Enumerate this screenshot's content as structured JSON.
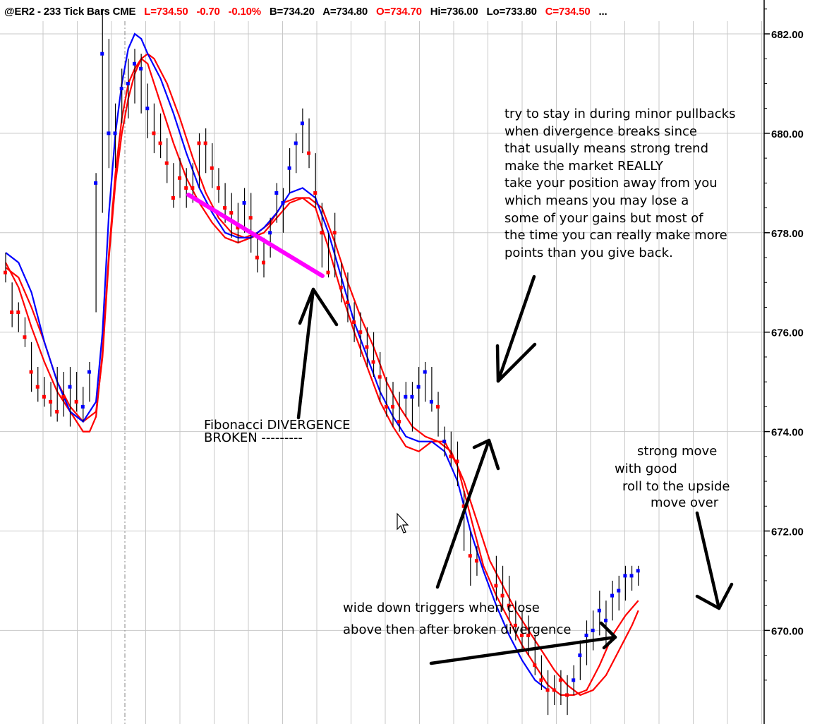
{
  "header": {
    "symbol_info": "@ER2 - 233 Tick Bars  CME",
    "last": "L=734.50",
    "change": "-0.70",
    "change_pct": "-0.10%",
    "bid": "B=734.20",
    "ask": "A=734.80",
    "open": "O=734.70",
    "high": "Hi=736.00",
    "low": "Lo=733.80",
    "close": "C=734.50",
    "more": "..."
  },
  "colors": {
    "up_bar": "#0000ff",
    "down_bar": "#ff0000",
    "fast_ma": "#0000ff",
    "slow_ma": "#ff0000",
    "divergence_line": "#ff00ff",
    "grid": "#c8c8c8"
  },
  "annotations": {
    "divergence": [
      "Fibonacci DIVERGENCE",
      "BROKEN ---------"
    ],
    "stay_in": [
      "try to stay in during minor pullbacks",
      "when divergence breaks since",
      "that usually means strong trend",
      "make the market REALLY",
      "take your position away from you",
      "which means you may lose a",
      "some of your gains but most of",
      "the time you can really make more",
      "points than you give back."
    ],
    "strong_move": [
      "strong move",
      "with good",
      "roll to the upside",
      "move over"
    ],
    "triggers": [
      "wide down triggers when close",
      "above then after broken divergence"
    ]
  },
  "chart_data": {
    "type": "bar",
    "title": "@ER2 - 233 Tick Bars  CME",
    "y_axis": {
      "ticks": [
        "682.00",
        "680.00",
        "678.00",
        "676.00",
        "674.00",
        "672.00",
        "670.00"
      ],
      "tick_values": [
        682,
        680,
        678,
        676,
        674,
        672,
        670
      ],
      "ylim": [
        668.2,
        682.6
      ]
    },
    "grid": true,
    "x_range": [
      0,
      74
    ],
    "bars": [
      {
        "i": 0,
        "open": 677.4,
        "high": 677.6,
        "low": 677.0,
        "close": 677.2,
        "color": "red"
      },
      {
        "i": 1,
        "open": 676.5,
        "high": 677.0,
        "low": 676.1,
        "close": 676.4,
        "color": "red"
      },
      {
        "i": 2,
        "open": 676.4,
        "high": 676.6,
        "low": 676.0,
        "close": 676.4,
        "color": "red"
      },
      {
        "i": 3,
        "open": 676.0,
        "high": 676.3,
        "low": 675.7,
        "close": 675.9,
        "color": "red"
      },
      {
        "i": 4,
        "open": 675.3,
        "high": 675.8,
        "low": 674.8,
        "close": 675.2,
        "color": "red"
      },
      {
        "i": 5,
        "open": 675.0,
        "high": 675.3,
        "low": 674.6,
        "close": 674.9,
        "color": "red"
      },
      {
        "i": 6,
        "open": 674.8,
        "high": 675.1,
        "low": 674.5,
        "close": 674.7,
        "color": "red"
      },
      {
        "i": 7,
        "open": 674.7,
        "high": 675.0,
        "low": 674.3,
        "close": 674.6,
        "color": "red"
      },
      {
        "i": 8,
        "open": 674.5,
        "high": 675.3,
        "low": 674.2,
        "close": 674.4,
        "color": "red"
      },
      {
        "i": 9,
        "open": 674.8,
        "high": 675.2,
        "low": 674.3,
        "close": 674.7,
        "color": "red"
      },
      {
        "i": 10,
        "open": 674.8,
        "high": 675.3,
        "low": 674.1,
        "close": 674.9,
        "color": "blue"
      },
      {
        "i": 11,
        "open": 674.7,
        "high": 675.2,
        "low": 674.4,
        "close": 674.6,
        "color": "red"
      },
      {
        "i": 12,
        "open": 674.4,
        "high": 674.9,
        "low": 674.2,
        "close": 674.5,
        "color": "blue"
      },
      {
        "i": 13,
        "open": 675.0,
        "high": 675.4,
        "low": 674.6,
        "close": 675.2,
        "color": "blue"
      },
      {
        "i": 14,
        "open": 678.5,
        "high": 679.2,
        "low": 676.4,
        "close": 679.0,
        "color": "blue"
      },
      {
        "i": 15,
        "open": 681.3,
        "high": 682.5,
        "low": 678.4,
        "close": 681.6,
        "color": "blue"
      },
      {
        "i": 16,
        "open": 680.0,
        "high": 681.9,
        "low": 679.3,
        "close": 680.0,
        "color": "blue"
      },
      {
        "i": 17,
        "open": 680.0,
        "high": 680.6,
        "low": 679.3,
        "close": 680.0,
        "color": "blue"
      },
      {
        "i": 18,
        "open": 680.8,
        "high": 681.3,
        "low": 680.2,
        "close": 680.9,
        "color": "blue"
      },
      {
        "i": 19,
        "open": 680.9,
        "high": 681.5,
        "low": 680.3,
        "close": 681.0,
        "color": "blue"
      },
      {
        "i": 20,
        "open": 681.2,
        "high": 681.7,
        "low": 680.6,
        "close": 681.4,
        "color": "blue"
      },
      {
        "i": 21,
        "open": 681.2,
        "high": 681.6,
        "low": 680.4,
        "close": 681.3,
        "color": "blue"
      },
      {
        "i": 22,
        "open": 680.4,
        "high": 681.0,
        "low": 679.9,
        "close": 680.5,
        "color": "blue"
      },
      {
        "i": 23,
        "open": 680.2,
        "high": 680.6,
        "low": 679.6,
        "close": 680.0,
        "color": "red"
      },
      {
        "i": 24,
        "open": 679.9,
        "high": 680.4,
        "low": 679.5,
        "close": 679.8,
        "color": "red"
      },
      {
        "i": 25,
        "open": 679.4,
        "high": 679.9,
        "low": 679.0,
        "close": 679.4,
        "color": "red"
      },
      {
        "i": 26,
        "open": 679.0,
        "high": 679.4,
        "low": 678.5,
        "close": 678.7,
        "color": "red"
      },
      {
        "i": 27,
        "open": 679.1,
        "high": 679.5,
        "low": 678.7,
        "close": 679.1,
        "color": "red"
      },
      {
        "i": 28,
        "open": 678.9,
        "high": 679.3,
        "low": 678.5,
        "close": 678.9,
        "color": "red"
      },
      {
        "i": 29,
        "open": 678.9,
        "high": 679.4,
        "low": 678.6,
        "close": 678.9,
        "color": "red"
      },
      {
        "i": 30,
        "open": 679.6,
        "high": 680.0,
        "low": 678.9,
        "close": 679.8,
        "color": "red"
      },
      {
        "i": 31,
        "open": 679.8,
        "high": 680.1,
        "low": 679.2,
        "close": 679.8,
        "color": "red"
      },
      {
        "i": 32,
        "open": 679.4,
        "high": 679.8,
        "low": 678.9,
        "close": 679.3,
        "color": "red"
      },
      {
        "i": 33,
        "open": 679.0,
        "high": 679.3,
        "low": 678.6,
        "close": 678.9,
        "color": "red"
      },
      {
        "i": 34,
        "open": 678.6,
        "high": 679.0,
        "low": 678.2,
        "close": 678.5,
        "color": "red"
      },
      {
        "i": 35,
        "open": 678.5,
        "high": 678.8,
        "low": 677.9,
        "close": 678.4,
        "color": "red"
      },
      {
        "i": 36,
        "open": 678.3,
        "high": 678.6,
        "low": 677.8,
        "close": 678.1,
        "color": "red"
      },
      {
        "i": 37,
        "open": 678.4,
        "high": 678.9,
        "low": 678.0,
        "close": 678.6,
        "color": "blue"
      },
      {
        "i": 38,
        "open": 678.4,
        "high": 678.8,
        "low": 677.6,
        "close": 678.3,
        "color": "red"
      },
      {
        "i": 39,
        "open": 677.6,
        "high": 678.0,
        "low": 677.2,
        "close": 677.5,
        "color": "red"
      },
      {
        "i": 40,
        "open": 677.5,
        "high": 677.9,
        "low": 677.1,
        "close": 677.4,
        "color": "red"
      },
      {
        "i": 41,
        "open": 677.9,
        "high": 678.3,
        "low": 677.5,
        "close": 678.0,
        "color": "blue"
      },
      {
        "i": 42,
        "open": 678.6,
        "high": 679.0,
        "low": 678.2,
        "close": 678.8,
        "color": "blue"
      },
      {
        "i": 43,
        "open": 678.6,
        "high": 678.9,
        "low": 678.0,
        "close": 678.6,
        "color": "blue"
      },
      {
        "i": 44,
        "open": 679.2,
        "high": 679.7,
        "low": 678.8,
        "close": 679.3,
        "color": "blue"
      },
      {
        "i": 45,
        "open": 679.6,
        "high": 680.0,
        "low": 679.2,
        "close": 679.8,
        "color": "blue"
      },
      {
        "i": 46,
        "open": 680.0,
        "high": 680.5,
        "low": 679.6,
        "close": 680.2,
        "color": "blue"
      },
      {
        "i": 47,
        "open": 679.6,
        "high": 680.3,
        "low": 679.3,
        "close": 679.6,
        "color": "red"
      },
      {
        "i": 48,
        "open": 679.0,
        "high": 679.6,
        "low": 678.5,
        "close": 678.8,
        "color": "red"
      },
      {
        "i": 49,
        "open": 678.1,
        "high": 678.6,
        "low": 677.3,
        "close": 678.0,
        "color": "red"
      },
      {
        "i": 50,
        "open": 677.4,
        "high": 678.0,
        "low": 677.1,
        "close": 677.2,
        "color": "red"
      },
      {
        "i": 51,
        "open": 678.0,
        "high": 678.4,
        "low": 677.1,
        "close": 678.0,
        "color": "red"
      },
      {
        "i": 52,
        "open": 677.1,
        "high": 677.4,
        "low": 676.6,
        "close": 676.9,
        "color": "red"
      },
      {
        "i": 53,
        "open": 676.6,
        "high": 677.2,
        "low": 676.2,
        "close": 676.6,
        "color": "red"
      },
      {
        "i": 54,
        "open": 676.2,
        "high": 676.6,
        "low": 675.8,
        "close": 676.2,
        "color": "red"
      },
      {
        "i": 55,
        "open": 676.0,
        "high": 676.4,
        "low": 675.5,
        "close": 676.0,
        "color": "red"
      },
      {
        "i": 56,
        "open": 675.7,
        "high": 676.1,
        "low": 675.3,
        "close": 675.7,
        "color": "red"
      },
      {
        "i": 57,
        "open": 675.6,
        "high": 676.0,
        "low": 675.1,
        "close": 675.4,
        "color": "red"
      },
      {
        "i": 58,
        "open": 675.2,
        "high": 675.6,
        "low": 674.6,
        "close": 675.1,
        "color": "red"
      },
      {
        "i": 59,
        "open": 674.6,
        "high": 675.1,
        "low": 674.3,
        "close": 674.5,
        "color": "red"
      },
      {
        "i": 60,
        "open": 674.6,
        "high": 675.0,
        "low": 674.1,
        "close": 674.5,
        "color": "red"
      },
      {
        "i": 61,
        "open": 674.3,
        "high": 674.8,
        "low": 674.0,
        "close": 674.2,
        "color": "red"
      },
      {
        "i": 62,
        "open": 674.6,
        "high": 675.0,
        "low": 674.3,
        "close": 674.7,
        "color": "blue"
      },
      {
        "i": 63,
        "open": 674.6,
        "high": 675.0,
        "low": 674.0,
        "close": 674.7,
        "color": "blue"
      },
      {
        "i": 64,
        "open": 674.9,
        "high": 675.3,
        "low": 674.5,
        "close": 674.9,
        "color": "blue"
      },
      {
        "i": 65,
        "open": 675.1,
        "high": 675.4,
        "low": 674.6,
        "close": 675.2,
        "color": "blue"
      },
      {
        "i": 66,
        "open": 674.7,
        "high": 675.3,
        "low": 674.4,
        "close": 674.6,
        "color": "blue"
      },
      {
        "i": 67,
        "open": 674.5,
        "high": 674.8,
        "low": 673.9,
        "close": 674.5,
        "color": "red"
      },
      {
        "i": 68,
        "open": 673.9,
        "high": 674.1,
        "low": 673.5,
        "close": 673.8,
        "color": "blue"
      },
      {
        "i": 69,
        "open": 673.7,
        "high": 674.0,
        "low": 673.3,
        "close": 673.5,
        "color": "red"
      },
      {
        "i": 70,
        "open": 673.6,
        "high": 673.8,
        "low": 672.9,
        "close": 673.4,
        "color": "red"
      },
      {
        "i": 71,
        "open": 672.4,
        "high": 672.8,
        "low": 671.6,
        "close": 672.5,
        "color": "red"
      },
      {
        "i": 72,
        "open": 671.4,
        "high": 672.0,
        "low": 670.9,
        "close": 671.5,
        "color": "red"
      },
      {
        "i": 73,
        "open": 671.5,
        "high": 671.7,
        "low": 671.1,
        "close": 671.4,
        "color": "red"
      }
    ],
    "bars_right": [
      {
        "x": 676,
        "open": 671.0,
        "high": 671.5,
        "low": 670.6,
        "close": 670.9,
        "color": "red"
      },
      {
        "x": 677,
        "open": 670.8,
        "high": 671.3,
        "low": 670.4,
        "close": 670.7,
        "color": "red"
      },
      {
        "x": 678,
        "open": 670.6,
        "high": 671.1,
        "low": 670.2,
        "close": 670.5,
        "color": "red"
      },
      {
        "x": 679,
        "open": 670.3,
        "high": 670.6,
        "low": 669.8,
        "close": 670.1,
        "color": "red"
      },
      {
        "x": 680,
        "open": 670.0,
        "high": 670.4,
        "low": 669.6,
        "close": 669.9,
        "color": "red"
      },
      {
        "x": 681,
        "open": 670.0,
        "high": 670.3,
        "low": 669.5,
        "close": 669.9,
        "color": "red"
      },
      {
        "x": 682,
        "open": 669.5,
        "high": 669.9,
        "low": 669.1,
        "close": 669.3,
        "color": "red"
      },
      {
        "x": 683,
        "open": 669.1,
        "high": 669.5,
        "low": 668.8,
        "close": 669.0,
        "color": "red"
      },
      {
        "x": 684,
        "open": 668.9,
        "high": 669.2,
        "low": 668.3,
        "close": 668.8,
        "color": "red"
      },
      {
        "x": 685,
        "open": 668.8,
        "high": 669.1,
        "low": 668.5,
        "close": 668.8,
        "color": "red"
      },
      {
        "x": 686,
        "open": 669.1,
        "high": 669.2,
        "low": 668.5,
        "close": 669.0,
        "color": "red"
      },
      {
        "x": 687,
        "open": 668.8,
        "high": 669.1,
        "low": 668.3,
        "close": 668.7,
        "color": "red"
      },
      {
        "x": 688,
        "open": 669.0,
        "high": 669.3,
        "low": 668.7,
        "close": 669.0,
        "color": "blue"
      },
      {
        "x": 689,
        "open": 669.5,
        "high": 669.8,
        "low": 669.0,
        "close": 669.5,
        "color": "blue"
      },
      {
        "x": 690,
        "open": 669.9,
        "high": 670.2,
        "low": 669.3,
        "close": 669.9,
        "color": "blue"
      },
      {
        "x": 691,
        "open": 670.0,
        "high": 670.4,
        "low": 669.6,
        "close": 670.0,
        "color": "blue"
      },
      {
        "x": 692,
        "open": 670.3,
        "high": 670.8,
        "low": 669.9,
        "close": 670.4,
        "color": "blue"
      },
      {
        "x": 693,
        "open": 670.1,
        "high": 670.6,
        "low": 669.7,
        "close": 670.2,
        "color": "blue"
      },
      {
        "x": 694,
        "open": 670.6,
        "high": 671.0,
        "low": 670.2,
        "close": 670.7,
        "color": "blue"
      },
      {
        "x": 695,
        "open": 670.8,
        "high": 671.1,
        "low": 670.4,
        "close": 670.8,
        "color": "blue"
      },
      {
        "x": 696,
        "open": 671.0,
        "high": 671.3,
        "low": 670.6,
        "close": 671.1,
        "color": "blue"
      },
      {
        "x": 697,
        "open": 671.1,
        "high": 671.3,
        "low": 670.8,
        "close": 671.1,
        "color": "blue"
      },
      {
        "x": 698,
        "open": 671.2,
        "high": 671.3,
        "low": 670.9,
        "close": 671.2,
        "color": "blue"
      }
    ]
  }
}
